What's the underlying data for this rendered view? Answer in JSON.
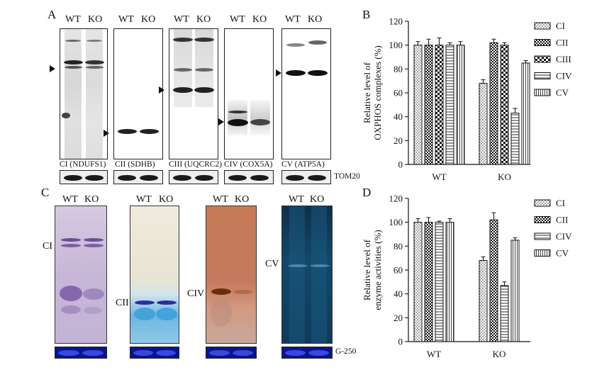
{
  "panels": {
    "a": "A",
    "b": "B",
    "c": "C",
    "d": "D"
  },
  "lanes": {
    "wt": "WT",
    "ko": "KO"
  },
  "panel_a": {
    "blots": [
      {
        "caption": "CI (NDUFS1)"
      },
      {
        "caption": "CII (SDHB)"
      },
      {
        "caption": "CIII (UQCRC2)"
      },
      {
        "caption": "CIV (COX5A)"
      },
      {
        "caption": "CV (ATP5A)"
      }
    ],
    "loading_control": "TOM20"
  },
  "panel_c": {
    "gels": [
      {
        "label": "CI"
      },
      {
        "label": "CII"
      },
      {
        "label": "CIV"
      },
      {
        "label": "CV"
      }
    ],
    "stain_label": "G-250"
  },
  "chart_data": [
    {
      "type": "bar",
      "panel": "B",
      "ylabel_line1": "Relative level of",
      "ylabel_line2": "OXPHOS complexes (%)",
      "categories": [
        "WT",
        "KO"
      ],
      "ylim": [
        0,
        120
      ],
      "yticks": [
        "0",
        "20",
        "40",
        "60",
        "80",
        "100",
        "120"
      ],
      "legend_position": "right",
      "series": [
        {
          "name": "CI",
          "values": [
            100,
            68
          ],
          "errors": [
            3,
            3
          ],
          "pattern": "dots"
        },
        {
          "name": "CII",
          "values": [
            100,
            102
          ],
          "errors": [
            5,
            3
          ],
          "pattern": "checker"
        },
        {
          "name": "CIII",
          "values": [
            100,
            100
          ],
          "errors": [
            6,
            2
          ],
          "pattern": "checker-large"
        },
        {
          "name": "CIV",
          "values": [
            100,
            43
          ],
          "errors": [
            2,
            4
          ],
          "pattern": "horizontal"
        },
        {
          "name": "CV",
          "values": [
            100,
            85
          ],
          "errors": [
            3,
            2
          ],
          "pattern": "vertical"
        }
      ]
    },
    {
      "type": "bar",
      "panel": "D",
      "ylabel_line1": "Relative level of",
      "ylabel_line2": "enzyme activities (%)",
      "categories": [
        "WT",
        "KO"
      ],
      "ylim": [
        0,
        120
      ],
      "yticks": [
        "0",
        "20",
        "40",
        "60",
        "80",
        "100",
        "120"
      ],
      "legend_position": "right",
      "series": [
        {
          "name": "CI",
          "values": [
            100,
            68
          ],
          "errors": [
            3,
            3
          ],
          "pattern": "dots"
        },
        {
          "name": "CII",
          "values": [
            100,
            102
          ],
          "errors": [
            4,
            6
          ],
          "pattern": "checker"
        },
        {
          "name": "CIV",
          "values": [
            100,
            47
          ],
          "errors": [
            1,
            3
          ],
          "pattern": "horizontal"
        },
        {
          "name": "CV",
          "values": [
            100,
            85
          ],
          "errors": [
            3,
            2
          ],
          "pattern": "vertical"
        }
      ]
    }
  ]
}
